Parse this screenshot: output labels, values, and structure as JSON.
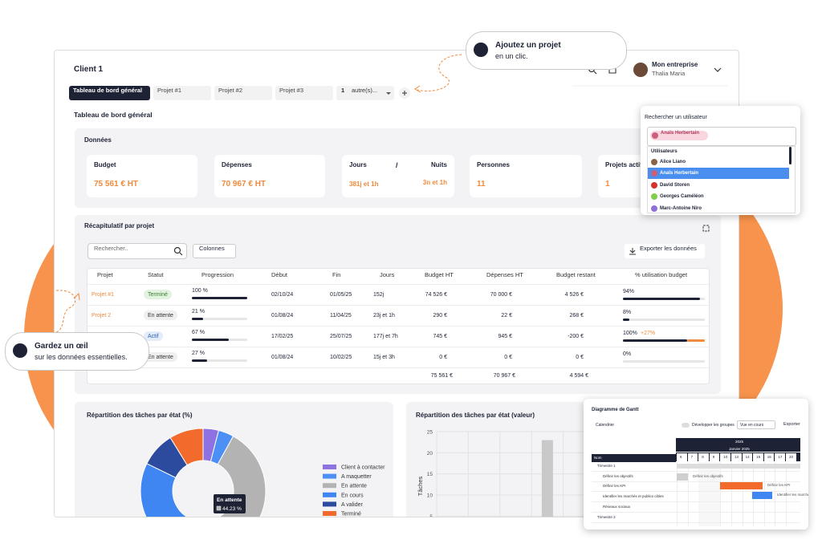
{
  "header": {
    "client": "Client 1",
    "company": "Mon entreprise",
    "user": "Thalia Maria"
  },
  "tabs": {
    "items": [
      "Tableau de bord général",
      "Projet #1",
      "Projet #2",
      "Projet #3"
    ],
    "more_count": "1",
    "more_label": "autre(s)..."
  },
  "page_title": "Tableau de bord général",
  "data_panel": {
    "title": "Données",
    "cards": [
      {
        "label": "Budget",
        "value": "75 561 € HT"
      },
      {
        "label": "Dépenses",
        "value": "70 967 € HT"
      },
      {
        "label": "Jours",
        "separator": "/",
        "label2": "Nuits",
        "value": "381j et 1h",
        "value2": "3n et 1h"
      },
      {
        "label": "Personnes",
        "value": "11"
      },
      {
        "label": "Projets actifs",
        "value": "1"
      }
    ]
  },
  "recap": {
    "title": "Récapitulatif par projet",
    "search_placeholder": "Rechercher..",
    "columns_button": "Colonnes",
    "export_button": "Exporter les données",
    "headers": [
      "Projet",
      "Statut",
      "Progression",
      "Début",
      "Fin",
      "Jours",
      "Budget HT",
      "Dépenses HT",
      "Budget restant",
      "% utilisation budget"
    ],
    "rows": [
      {
        "name": "Projet #1",
        "status": "Terminé",
        "progress_label": "100 %",
        "progress": 100,
        "start": "02/10/24",
        "end": "01/05/25",
        "days": "152j",
        "budget": "74 526 €",
        "spent": "70 000 €",
        "remaining": "4 526 €",
        "usage_label": "94%",
        "usage": 94
      },
      {
        "name": "Projet 2",
        "status": "En attente",
        "progress_label": "21 %",
        "progress": 21,
        "start": "01/08/24",
        "end": "11/04/25",
        "days": "23j et 1h",
        "budget": "290 €",
        "spent": "22 €",
        "remaining": "268 €",
        "usage_label": "8%",
        "usage": 8
      },
      {
        "status": "Actif",
        "progress_label": "67 %",
        "progress": 67,
        "start": "17/02/25",
        "end": "25/07/25",
        "days": "177j et 7h",
        "budget": "745 €",
        "spent": "945 €",
        "remaining": "-200 €",
        "usage_label": "100%",
        "usage": 100,
        "overrun_label": "+27%",
        "overrun": 27
      },
      {
        "status": "En attente",
        "progress_label": "27 %",
        "progress": 27,
        "start": "01/08/24",
        "end": "10/02/25",
        "days": "15j et 3h",
        "budget": "0 €",
        "spent": "0 €",
        "remaining": "0 €",
        "usage_label": "0%",
        "usage": 0
      }
    ],
    "totals": {
      "budget": "75 561 €",
      "spent": "70 967 €",
      "remaining": "4 594 €"
    }
  },
  "chart_data": [
    {
      "type": "pie",
      "title": "Répartition des tâches par état (%)",
      "categories": [
        "Client à contacter",
        "A maquetter",
        "En attente",
        "En cours",
        "A valider",
        "Terminé"
      ],
      "values": [
        4,
        4,
        44.23,
        30,
        9,
        8.77
      ],
      "colors": [
        "#8f72e2",
        "#4d90f5",
        "#b3b3b3",
        "#3f86f2",
        "#2c4a9e",
        "#f26b2c"
      ],
      "tooltip": {
        "label": "En attente",
        "value": "44.23 %"
      }
    },
    {
      "type": "bar",
      "title": "Répartition des tâches par état (valeur)",
      "y_label": "Tâches",
      "categories": [
        null,
        null,
        null,
        null,
        null
      ],
      "values": [
        null,
        null,
        null,
        23,
        null
      ],
      "color": "#c9c9c9",
      "ylim": [
        0,
        25
      ],
      "yticks": [
        0,
        5,
        10,
        15,
        20,
        25
      ],
      "grid": true
    }
  ],
  "callouts": [
    {
      "title": "Ajoutez un projet",
      "text": "en un  clic."
    },
    {
      "title": "Gardez un œil",
      "text": "sur les données essentielles."
    }
  ],
  "user_search": {
    "title": "Rechercher un utilisateur",
    "chip": "Anaïs Herbertain",
    "group": "Utilisateurs",
    "users": [
      {
        "name": "Alice Liano",
        "color": "#8a6446"
      },
      {
        "name": "Anaïs Herbertain",
        "color": "#c9607a"
      },
      {
        "name": "David Storen",
        "color": "#d9302c"
      },
      {
        "name": "Georges Caméléon",
        "color": "#7fcf4a"
      },
      {
        "name": "Marc-Antoine Niro",
        "color": "#8e6fd8"
      }
    ]
  },
  "gantt": {
    "title": "Diagramme de Gantt",
    "calendar": "Calendrier",
    "expand_groups": "Développer les groupes",
    "view": "Vue en cours",
    "export": "Exporter",
    "year": "2025",
    "month": "Janvier 2025",
    "name_header": "Nom",
    "days": [
      "6",
      "7",
      "8",
      "9",
      "10",
      "13",
      "14",
      "15",
      "16",
      "17",
      "20"
    ],
    "rows": [
      "Trimestre 1",
      "Définir les objectifs",
      "Définir les KPI",
      "Identifier les marchés et publics cibles",
      "Réseaux sociaux",
      "Trimestre 2"
    ],
    "bar_labels": [
      "Définir les objectifs",
      "Définir les KPI",
      "Identifier les marchés et publics cibles"
    ]
  }
}
